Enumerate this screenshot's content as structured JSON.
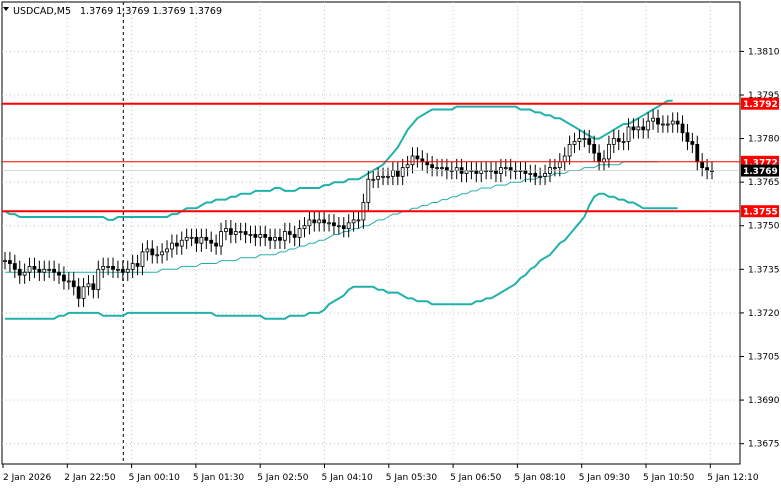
{
  "header": {
    "symbol": "USDCAD,M5",
    "ohlc": "1.3769 1.3769 1.3769 1.3769"
  },
  "colors": {
    "background": "#ffffff",
    "candle": "#000000",
    "level_line": "#ff0000",
    "bollinger_band": "#20b2aa",
    "moving_average": "#20b2aa",
    "current_price_tag": "#000000",
    "grid": "#c8c8c8"
  },
  "chart_data": {
    "type": "candlestick",
    "symbol": "USDCAD",
    "timeframe": "M5",
    "ylim": [
      1.3668,
      1.3827
    ],
    "y_ticks": [
      "1.3810",
      "1.3795",
      "1.3780",
      "1.3765",
      "1.3750",
      "1.3735",
      "1.3720",
      "1.3705",
      "1.3690",
      "1.3675"
    ],
    "x_ticks": [
      "2 Jan 2026",
      "2 Jan 22:50",
      "5 Jan 00:10",
      "5 Jan 01:30",
      "5 Jan 02:50",
      "5 Jan 04:10",
      "5 Jan 05:30",
      "5 Jan 06:50",
      "5 Jan 08:10",
      "5 Jan 09:30",
      "5 Jan 10:50",
      "5 Jan 12:10"
    ],
    "grid": true,
    "horizontal_levels": [
      {
        "value": 1.3792,
        "label": "1.3792",
        "style": "thick"
      },
      {
        "value": 1.3772,
        "label": "1.3772",
        "style": "thin"
      },
      {
        "value": 1.3755,
        "label": "1.3755",
        "style": "thick"
      }
    ],
    "current_price": {
      "value": 1.3769,
      "label": "1.3769"
    },
    "crosshair_vertical": "2 Jan 22:50",
    "close_series": [
      1.3738,
      1.3737,
      1.3735,
      1.3733,
      1.3734,
      1.3736,
      1.3735,
      1.3734,
      1.3735,
      1.3735,
      1.3734,
      1.3733,
      1.3731,
      1.3731,
      1.3729,
      1.3725,
      1.3729,
      1.373,
      1.3728,
      1.3735,
      1.3736,
      1.3736,
      1.3735,
      1.3735,
      1.3734,
      1.3735,
      1.3737,
      1.3736,
      1.3741,
      1.3742,
      1.374,
      1.374,
      1.3741,
      1.3742,
      1.3744,
      1.3743,
      1.3745,
      1.3746,
      1.3746,
      1.3744,
      1.3746,
      1.3745,
      1.3744,
      1.3743,
      1.3748,
      1.3749,
      1.3747,
      1.3748,
      1.3748,
      1.3747,
      1.3747,
      1.3746,
      1.3747,
      1.3746,
      1.3745,
      1.3746,
      1.3745,
      1.3748,
      1.3747,
      1.3746,
      1.3749,
      1.375,
      1.3752,
      1.3751,
      1.3752,
      1.3751,
      1.3751,
      1.375,
      1.375,
      1.3749,
      1.3751,
      1.3752,
      1.3752,
      1.3758,
      1.3766,
      1.3766,
      1.3767,
      1.3767,
      1.3767,
      1.3769,
      1.3767,
      1.377,
      1.3771,
      1.3774,
      1.3773,
      1.3772,
      1.3771,
      1.377,
      1.377,
      1.377,
      1.3769,
      1.3769,
      1.377,
      1.3768,
      1.3769,
      1.3769,
      1.3768,
      1.3769,
      1.3769,
      1.3769,
      1.3768,
      1.377,
      1.377,
      1.3769,
      1.3769,
      1.3769,
      1.3768,
      1.3768,
      1.3767,
      1.3767,
      1.3768,
      1.377,
      1.377,
      1.3772,
      1.3774,
      1.3778,
      1.3779,
      1.378,
      1.378,
      1.3778,
      1.3775,
      1.3772,
      1.3773,
      1.3778,
      1.378,
      1.3779,
      1.3779,
      1.3784,
      1.3783,
      1.3784,
      1.3783,
      1.3786,
      1.3787,
      1.3785,
      1.3785,
      1.3785,
      1.3786,
      1.3785,
      1.3782,
      1.3779,
      1.3778,
      1.3772,
      1.377,
      1.3769,
      1.3769
    ],
    "bollinger_upper": [
      1.3755,
      1.3754,
      1.3754,
      1.3753,
      1.3753,
      1.3753,
      1.3753,
      1.3753,
      1.3753,
      1.3753,
      1.3753,
      1.3753,
      1.3753,
      1.3753,
      1.3753,
      1.3753,
      1.3753,
      1.3753,
      1.3753,
      1.3753,
      1.3753,
      1.3752,
      1.3752,
      1.3753,
      1.3753,
      1.3753,
      1.3753,
      1.3753,
      1.3753,
      1.3753,
      1.3753,
      1.3753,
      1.3753,
      1.3753,
      1.3754,
      1.3754,
      1.3755,
      1.3756,
      1.3756,
      1.3756,
      1.3757,
      1.3758,
      1.3758,
      1.3759,
      1.3759,
      1.3759,
      1.376,
      1.376,
      1.3761,
      1.3761,
      1.3761,
      1.3762,
      1.3762,
      1.3762,
      1.3762,
      1.3763,
      1.3763,
      1.3762,
      1.3762,
      1.3762,
      1.3763,
      1.3763,
      1.3763,
      1.3763,
      1.3763,
      1.3764,
      1.3764,
      1.3765,
      1.3765,
      1.3765,
      1.3766,
      1.3766,
      1.3766,
      1.3767,
      1.3768,
      1.3769,
      1.377,
      1.3771,
      1.3773,
      1.3775,
      1.3777,
      1.378,
      1.3783,
      1.3785,
      1.3787,
      1.3788,
      1.3789,
      1.379,
      1.379,
      1.379,
      1.379,
      1.379,
      1.3791,
      1.3791,
      1.3791,
      1.3791,
      1.3791,
      1.3791,
      1.3791,
      1.3791,
      1.3791,
      1.3791,
      1.3791,
      1.3791,
      1.3791,
      1.379,
      1.379,
      1.379,
      1.3789,
      1.3789,
      1.3788,
      1.3788,
      1.3787,
      1.3787,
      1.3786,
      1.3785,
      1.3784,
      1.3783,
      1.3782,
      1.3781,
      1.378,
      1.378,
      1.3781,
      1.3782,
      1.3783,
      1.3784,
      1.3785,
      1.3785,
      1.3786,
      1.3787,
      1.3788,
      1.3789,
      1.379,
      1.3791,
      1.3792,
      1.3793,
      1.3793
    ],
    "moving_average": [
      1.3734,
      1.3734,
      1.3734,
      1.3734,
      1.3734,
      1.3734,
      1.3734,
      1.3734,
      1.3734,
      1.3734,
      1.3734,
      1.3734,
      1.3734,
      1.3734,
      1.3734,
      1.3734,
      1.3734,
      1.3734,
      1.3734,
      1.3734,
      1.3734,
      1.3734,
      1.3734,
      1.3734,
      1.3734,
      1.3734,
      1.3734,
      1.3734,
      1.3734,
      1.3734,
      1.3734,
      1.3734,
      1.3735,
      1.3735,
      1.3735,
      1.3735,
      1.3736,
      1.3736,
      1.3736,
      1.3736,
      1.3737,
      1.3737,
      1.3737,
      1.3737,
      1.3738,
      1.3738,
      1.3738,
      1.3738,
      1.3739,
      1.3739,
      1.3739,
      1.3739,
      1.374,
      1.374,
      1.374,
      1.374,
      1.3741,
      1.3741,
      1.3742,
      1.3742,
      1.3743,
      1.3743,
      1.3744,
      1.3744,
      1.3745,
      1.3745,
      1.3746,
      1.3747,
      1.3747,
      1.3748,
      1.3748,
      1.3749,
      1.3749,
      1.375,
      1.375,
      1.3751,
      1.3752,
      1.3752,
      1.3753,
      1.3754,
      1.3754,
      1.3755,
      1.3755,
      1.3756,
      1.3756,
      1.3757,
      1.3757,
      1.3758,
      1.3758,
      1.3759,
      1.3759,
      1.376,
      1.376,
      1.3761,
      1.3761,
      1.3762,
      1.3762,
      1.3763,
      1.3763,
      1.3763,
      1.3764,
      1.3764,
      1.3764,
      1.3765,
      1.3765,
      1.3765,
      1.3766,
      1.3766,
      1.3766,
      1.3767,
      1.3767,
      1.3767,
      1.3768,
      1.3768,
      1.3768,
      1.3769,
      1.3769,
      1.3769,
      1.377,
      1.377,
      1.377,
      1.3771,
      1.3771,
      1.3771,
      1.3771,
      1.3771,
      1.3772,
      1.3772,
      1.3772,
      1.3772,
      1.3772,
      1.3772,
      1.3772,
      1.3772
    ],
    "bollinger_lower": [
      1.3718,
      1.3718,
      1.3718,
      1.3718,
      1.3718,
      1.3718,
      1.3718,
      1.3718,
      1.3718,
      1.3718,
      1.3718,
      1.3719,
      1.3719,
      1.372,
      1.372,
      1.372,
      1.372,
      1.372,
      1.372,
      1.372,
      1.3719,
      1.3719,
      1.3719,
      1.3719,
      1.3719,
      1.372,
      1.372,
      1.372,
      1.372,
      1.372,
      1.372,
      1.372,
      1.372,
      1.372,
      1.372,
      1.372,
      1.372,
      1.372,
      1.372,
      1.372,
      1.372,
      1.372,
      1.372,
      1.3719,
      1.3719,
      1.3719,
      1.3719,
      1.3719,
      1.3719,
      1.3719,
      1.3719,
      1.3719,
      1.3719,
      1.3718,
      1.3718,
      1.3718,
      1.3718,
      1.3718,
      1.3719,
      1.3719,
      1.3719,
      1.3719,
      1.372,
      1.372,
      1.372,
      1.3721,
      1.3723,
      1.3724,
      1.3725,
      1.3726,
      1.3728,
      1.3729,
      1.3729,
      1.3729,
      1.3729,
      1.3729,
      1.3728,
      1.3728,
      1.3727,
      1.3727,
      1.3727,
      1.3726,
      1.3725,
      1.3725,
      1.3724,
      1.3724,
      1.3724,
      1.3723,
      1.3723,
      1.3723,
      1.3723,
      1.3723,
      1.3723,
      1.3723,
      1.3723,
      1.3723,
      1.3724,
      1.3724,
      1.3725,
      1.3725,
      1.3726,
      1.3727,
      1.3728,
      1.3729,
      1.373,
      1.3732,
      1.3733,
      1.3735,
      1.3736,
      1.3738,
      1.3739,
      1.374,
      1.3742,
      1.3744,
      1.3745,
      1.3747,
      1.3749,
      1.3751,
      1.3753,
      1.3757,
      1.376,
      1.3761,
      1.3761,
      1.376,
      1.376,
      1.3759,
      1.3759,
      1.3758,
      1.3758,
      1.3757,
      1.3756,
      1.3756,
      1.3756,
      1.3756,
      1.3756,
      1.3756,
      1.3756,
      1.3756
    ]
  }
}
